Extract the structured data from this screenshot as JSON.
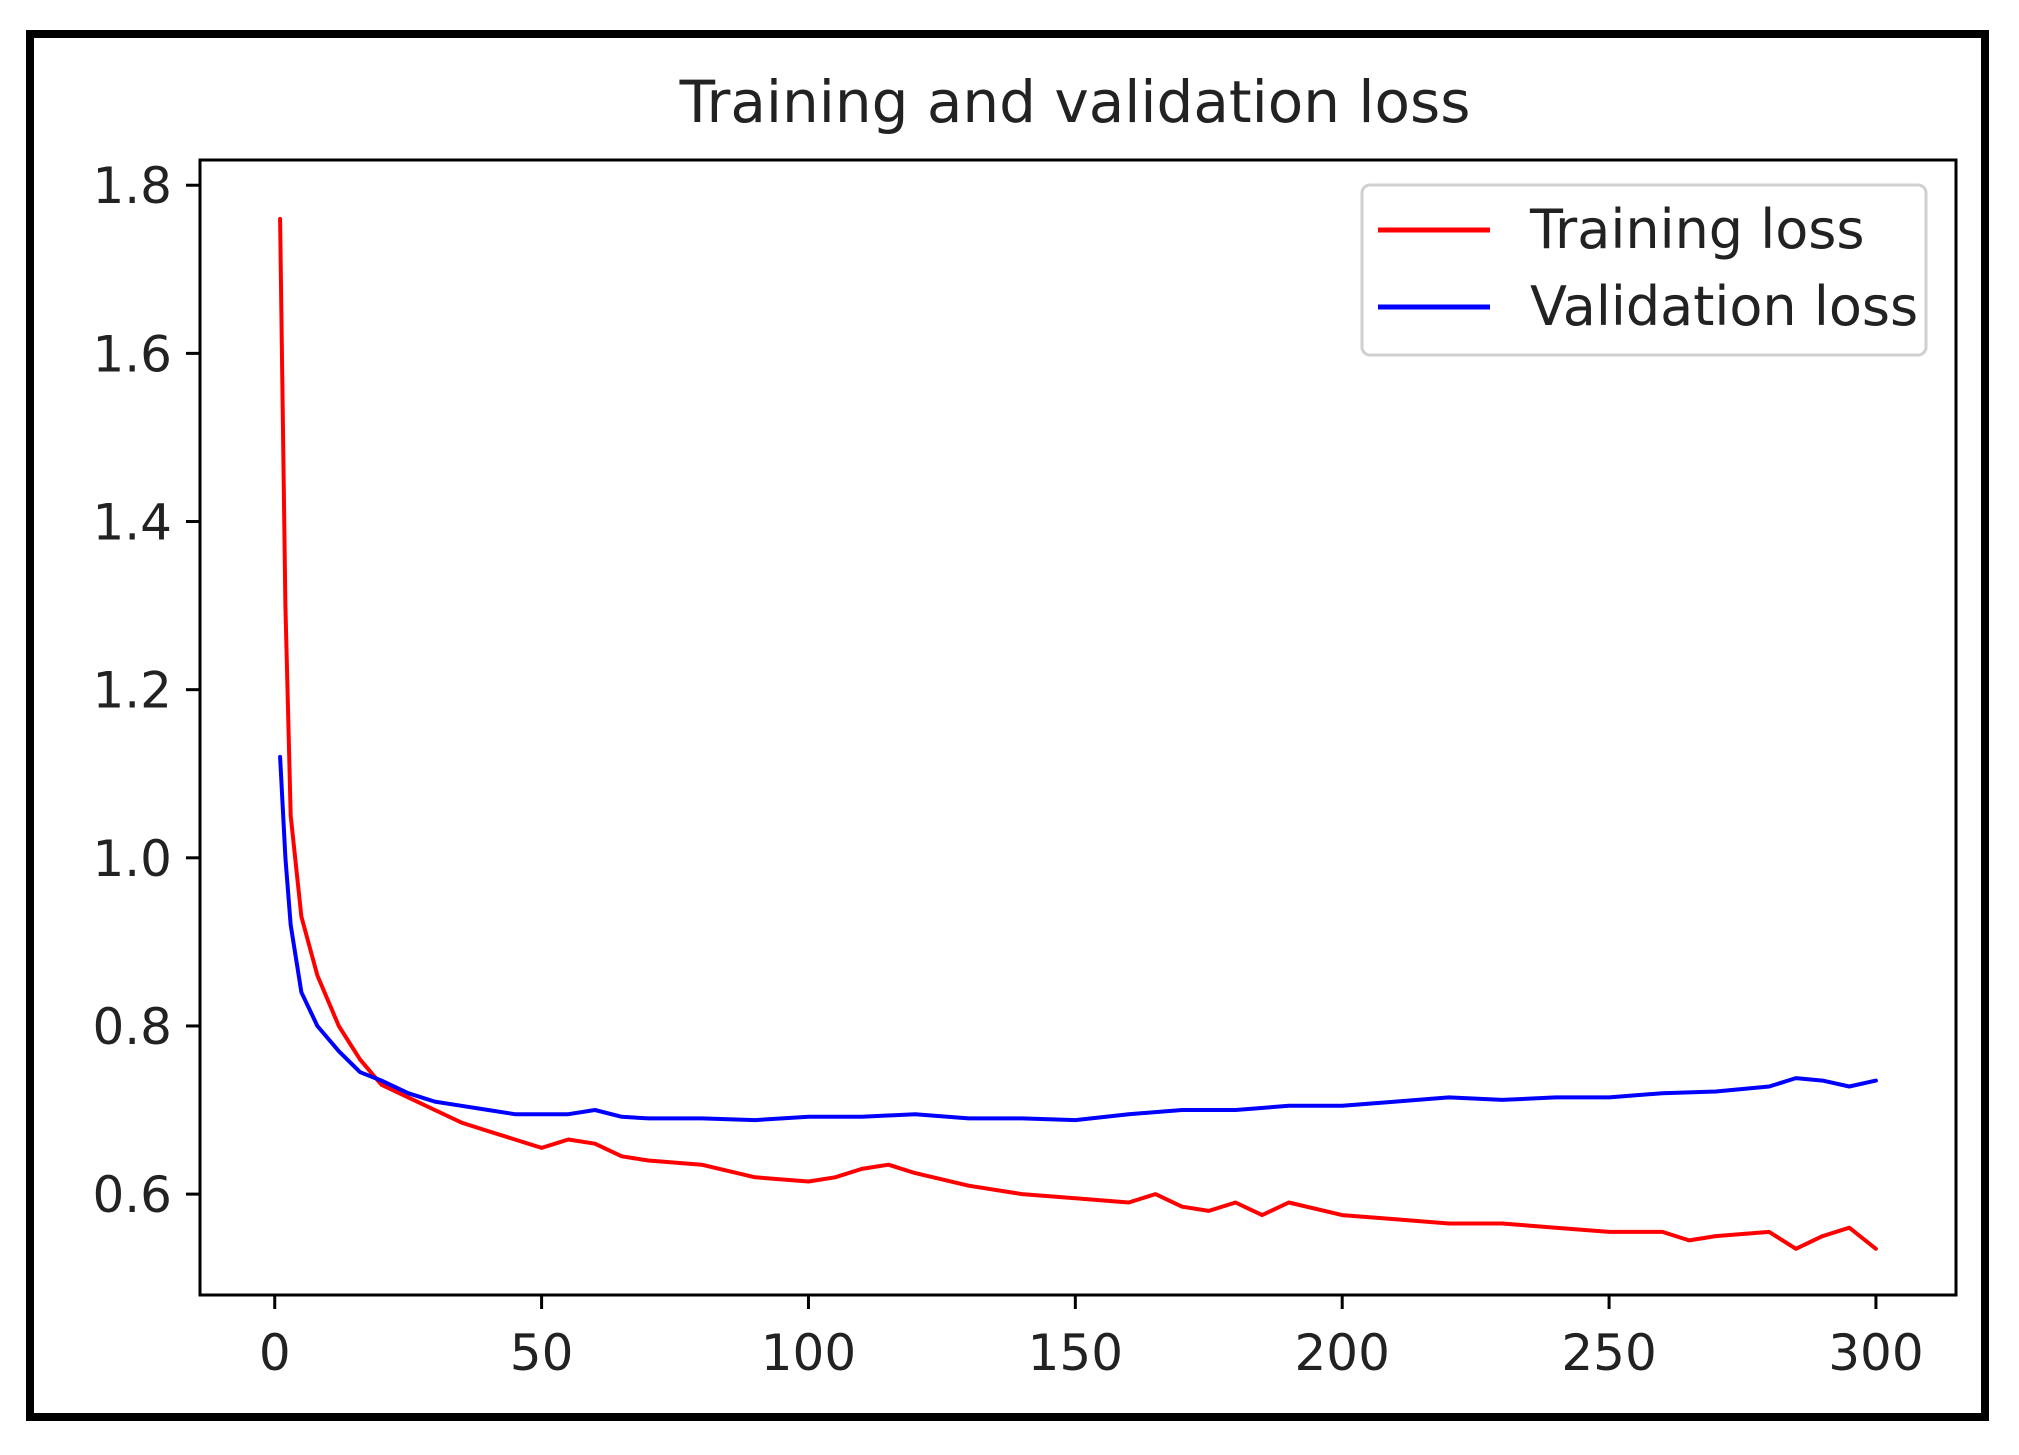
{
  "chart_data": {
    "type": "line",
    "title": "Training and validation loss",
    "xlabel": "",
    "ylabel": "",
    "xlim": [
      -14,
      315
    ],
    "ylim": [
      0.48,
      1.83
    ],
    "xticks": [
      0,
      50,
      100,
      150,
      200,
      250,
      300
    ],
    "xtick_labels": [
      "0",
      "50",
      "100",
      "150",
      "200",
      "250",
      "300"
    ],
    "yticks": [
      0.6,
      0.8,
      1.0,
      1.2,
      1.4,
      1.6,
      1.8
    ],
    "ytick_labels": [
      "0.6",
      "0.8",
      "1.0",
      "1.2",
      "1.4",
      "1.6",
      "1.8"
    ],
    "grid": false,
    "legend_position": "top-right",
    "series": [
      {
        "name": "Training loss",
        "color": "#ff0000",
        "x": [
          1,
          2,
          3,
          5,
          8,
          12,
          16,
          20,
          25,
          30,
          35,
          40,
          45,
          50,
          55,
          60,
          65,
          70,
          80,
          90,
          100,
          105,
          110,
          115,
          120,
          130,
          140,
          150,
          160,
          165,
          170,
          175,
          180,
          185,
          190,
          200,
          210,
          220,
          230,
          240,
          250,
          260,
          265,
          270,
          280,
          285,
          290,
          295,
          300
        ],
        "y": [
          1.76,
          1.3,
          1.05,
          0.93,
          0.86,
          0.8,
          0.76,
          0.73,
          0.715,
          0.7,
          0.685,
          0.675,
          0.665,
          0.655,
          0.665,
          0.66,
          0.645,
          0.64,
          0.635,
          0.62,
          0.615,
          0.62,
          0.63,
          0.635,
          0.625,
          0.61,
          0.6,
          0.595,
          0.59,
          0.6,
          0.585,
          0.58,
          0.59,
          0.575,
          0.59,
          0.575,
          0.57,
          0.565,
          0.565,
          0.56,
          0.555,
          0.555,
          0.545,
          0.55,
          0.555,
          0.535,
          0.55,
          0.56,
          0.535
        ]
      },
      {
        "name": "Validation loss",
        "color": "#0000ff",
        "x": [
          1,
          2,
          3,
          5,
          8,
          12,
          16,
          20,
          25,
          30,
          35,
          40,
          45,
          50,
          55,
          60,
          65,
          70,
          80,
          90,
          100,
          110,
          120,
          130,
          140,
          150,
          160,
          170,
          180,
          190,
          200,
          210,
          220,
          230,
          240,
          250,
          260,
          270,
          280,
          285,
          290,
          295,
          300
        ],
        "y": [
          1.12,
          1.0,
          0.92,
          0.84,
          0.8,
          0.77,
          0.745,
          0.735,
          0.72,
          0.71,
          0.705,
          0.7,
          0.695,
          0.695,
          0.695,
          0.7,
          0.692,
          0.69,
          0.69,
          0.688,
          0.692,
          0.692,
          0.695,
          0.69,
          0.69,
          0.688,
          0.695,
          0.7,
          0.7,
          0.705,
          0.705,
          0.71,
          0.715,
          0.712,
          0.715,
          0.715,
          0.72,
          0.722,
          0.728,
          0.738,
          0.735,
          0.728,
          0.735
        ]
      }
    ]
  }
}
